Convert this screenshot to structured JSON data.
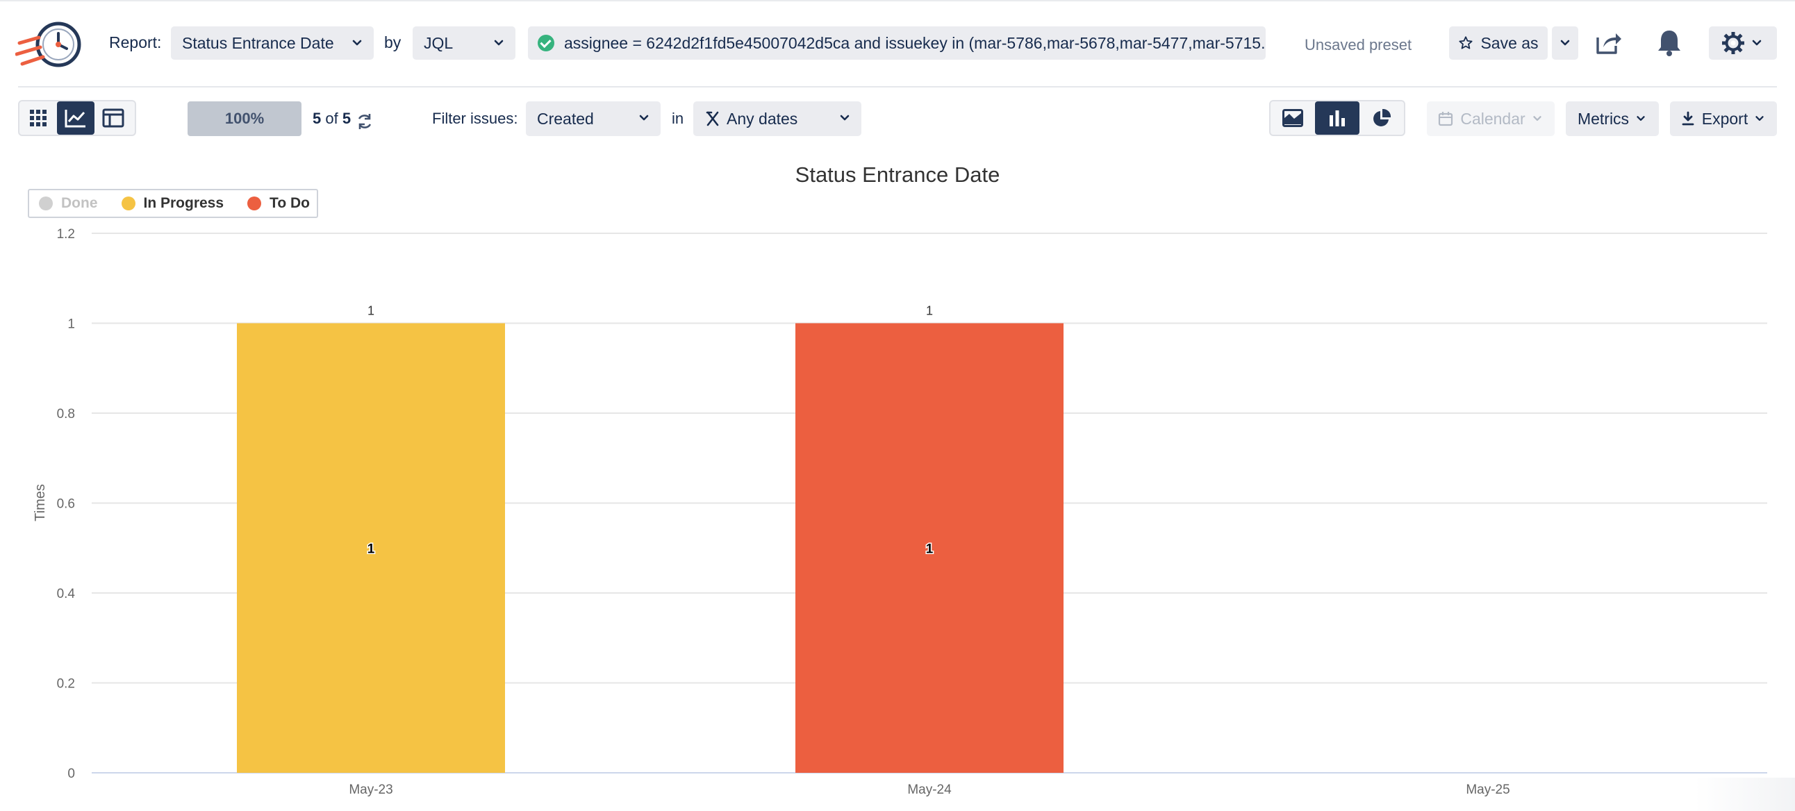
{
  "header": {
    "report_label": "Report:",
    "report_value": "Status Entrance Date",
    "by_label": "by",
    "by_value": "JQL",
    "jql_query": "assignee = 6242d2f1fd5e45007042d5ca and issuekey in (mar-5786,mar-5678,mar-5477,mar-5715...",
    "preset_status": "Unsaved preset",
    "save_as_label": "Save as"
  },
  "toolbar": {
    "progress": "100%",
    "count_current": "5",
    "count_of": "of",
    "count_total": "5",
    "filter_label": "Filter issues:",
    "filter_value": "Created",
    "in_label": "in",
    "dates_value": "Any dates",
    "calendar_label": "Calendar",
    "metrics_label": "Metrics",
    "export_label": "Export"
  },
  "colors": {
    "accent": "#253858",
    "in_progress": "#f5c344",
    "to_do": "#ec5f40",
    "done": "#d0d0d0"
  },
  "icons": [
    "logo-clock-icon",
    "grid-icon",
    "line-chart-icon",
    "table-icon",
    "area-chart-icon",
    "bar-chart-icon",
    "pie-chart-icon",
    "star-icon",
    "share-icon",
    "bell-icon",
    "gear-icon",
    "refresh-icon",
    "calendar-icon",
    "download-icon",
    "filter-icon",
    "chevron-down-icon",
    "check-icon"
  ],
  "chart_data": {
    "type": "bar",
    "title": "Status Entrance Date",
    "xlabel": "",
    "ylabel": "Times",
    "categories": [
      "May-23",
      "May-24",
      "May-25"
    ],
    "ylim": [
      0,
      1.2
    ],
    "yticks": [
      "0",
      "0.2",
      "0.4",
      "0.6",
      "0.8",
      "1",
      "1.2"
    ],
    "grid": true,
    "legend_position": "top-left",
    "series": [
      {
        "name": "Done",
        "values": [
          0,
          0,
          0
        ],
        "color": "#d0d0d0",
        "hidden": true
      },
      {
        "name": "In Progress",
        "values": [
          1,
          0,
          0
        ],
        "color": "#f5c344"
      },
      {
        "name": "To Do",
        "values": [
          0,
          1,
          0
        ],
        "color": "#ec5f40"
      }
    ],
    "totals": [
      1,
      1,
      0
    ]
  }
}
